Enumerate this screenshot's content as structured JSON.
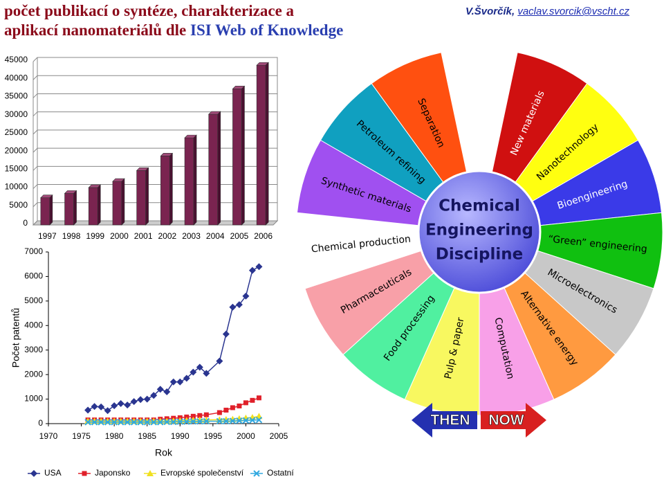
{
  "header": {
    "title_line1": "počet publikací o syntéze, charakterizace a",
    "title_line2": "aplikací nanomateriálů dle",
    "title_highlight": "ISI Web of Knowledge",
    "author": "V.Švorčík,",
    "email": "vaclav.svorcik@vscht.cz"
  },
  "chart_data": [
    {
      "type": "bar",
      "categories": [
        "1997",
        "1998",
        "1999",
        "2000",
        "2001",
        "2002",
        "2003",
        "2004",
        "2005",
        "2006"
      ],
      "values": [
        7500,
        8700,
        10300,
        12000,
        15000,
        19000,
        24000,
        30500,
        37500,
        44000
      ],
      "color": "#7a2450",
      "ylim": [
        0,
        45000
      ],
      "yticks": [
        0,
        5000,
        10000,
        15000,
        20000,
        25000,
        30000,
        35000,
        40000,
        45000
      ],
      "grid": true
    },
    {
      "type": "line",
      "y_label": "Počet patentů",
      "x_label": "Rok",
      "x": [
        1976,
        1977,
        1978,
        1979,
        1980,
        1981,
        1982,
        1983,
        1984,
        1985,
        1986,
        1987,
        1988,
        1989,
        1990,
        1991,
        1992,
        1993,
        1994,
        1996,
        1997,
        1998,
        1999,
        2000,
        2001,
        2002
      ],
      "xlim": [
        1970,
        2005
      ],
      "xticks": [
        1970,
        1975,
        1980,
        1985,
        1990,
        1995,
        2000,
        2005
      ],
      "ylim": [
        0,
        7000
      ],
      "yticks": [
        0,
        1000,
        2000,
        3000,
        4000,
        5000,
        6000,
        7000
      ],
      "legend": "bottom",
      "series": [
        {
          "name": "USA",
          "color": "#2a3590",
          "marker": "diamond",
          "values": [
            550,
            700,
            680,
            530,
            730,
            820,
            760,
            900,
            980,
            1000,
            1150,
            1400,
            1300,
            1700,
            1700,
            1850,
            2100,
            2300,
            2050,
            2550,
            3650,
            4750,
            4850,
            5200,
            6250,
            6400
          ]
        },
        {
          "name": "Japonsko",
          "color": "#e0202a",
          "marker": "square",
          "values": [
            150,
            150,
            150,
            150,
            150,
            150,
            150,
            150,
            150,
            150,
            150,
            180,
            200,
            220,
            240,
            270,
            300,
            330,
            360,
            450,
            550,
            650,
            720,
            850,
            950,
            1050
          ]
        },
        {
          "name": "Evropské společenství",
          "color": "#f0e020",
          "marker": "triangle",
          "values": [
            100,
            100,
            100,
            100,
            100,
            100,
            100,
            100,
            100,
            100,
            100,
            100,
            100,
            110,
            120,
            130,
            140,
            150,
            150,
            160,
            170,
            180,
            200,
            230,
            250,
            300
          ]
        },
        {
          "name": "Ostatní",
          "color": "#30a8e0",
          "marker": "cross",
          "values": [
            60,
            60,
            60,
            60,
            60,
            60,
            60,
            60,
            60,
            60,
            60,
            60,
            70,
            70,
            80,
            80,
            90,
            90,
            100,
            100,
            100,
            110,
            120,
            130,
            140,
            150
          ]
        }
      ]
    }
  ],
  "wheel": {
    "center": [
      "Chemical",
      "Engineering",
      "Discipline"
    ],
    "segments": [
      {
        "label": null,
        "color": "#ffffff"
      },
      {
        "label": "New materials",
        "color": "#d01010"
      },
      {
        "label": "Nanotechnology",
        "color": "#ffff10"
      },
      {
        "label": "Bioengineering",
        "color": "#3a3ae8"
      },
      {
        "label": "“Green” engineering",
        "color": "#10c010"
      },
      {
        "label": "Microelectronics",
        "color": "#c8c8c8"
      },
      {
        "label": "Alternative energy",
        "color": "#ff9a40"
      },
      {
        "label": "Computation",
        "color": "#f8a0e8"
      },
      {
        "label": "Pulp & paper",
        "color": "#f8f860"
      },
      {
        "label": "Food processing",
        "color": "#50f0a0"
      },
      {
        "label": "Pharmaceuticals",
        "color": "#f8a0a8"
      },
      {
        "label": "Chemical production",
        "color": "#ffffff"
      },
      {
        "label": "Synthetic materials",
        "color": "#a050f0"
      },
      {
        "label": "Petroleum refining",
        "color": "#10a0c0"
      },
      {
        "label": "Separation",
        "color": "#ff5010"
      }
    ]
  },
  "arrows": {
    "then": "THEN",
    "now": "NOW"
  }
}
